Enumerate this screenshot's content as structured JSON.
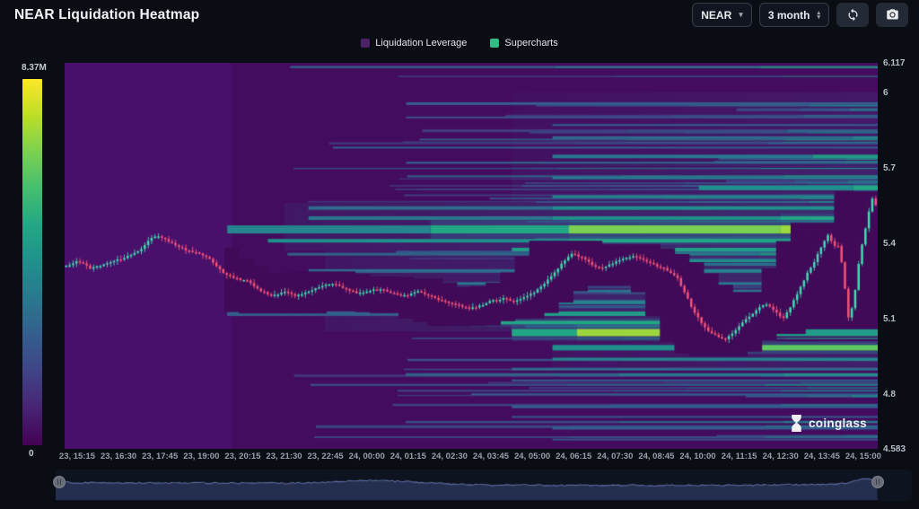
{
  "header": {
    "title": "NEAR Liquidation Heatmap",
    "symbol_select": {
      "value": "NEAR"
    },
    "period_select": {
      "value": "3 month"
    }
  },
  "legend": [
    {
      "label": "Liquidation Leverage",
      "color": "#4b2066"
    },
    {
      "label": "Supercharts",
      "color": "#2ebd85"
    }
  ],
  "colorbar": {
    "max_label": "8.37M",
    "min_label": "0",
    "colors": [
      "#fde725",
      "#bdde26",
      "#7ad151",
      "#44be70",
      "#22a784",
      "#20908c",
      "#29788e",
      "#345e8d",
      "#404387",
      "#482374",
      "#440154"
    ]
  },
  "watermark": {
    "text": "coinglass"
  },
  "chart_data": {
    "type": "heatmap",
    "title": "NEAR Liquidation Heatmap",
    "legend": [
      "Liquidation Leverage",
      "Supercharts"
    ],
    "colorbar": {
      "min": 0,
      "max": "8.37M"
    },
    "x_axis": {
      "labels": [
        "23, 15:15",
        "23, 16:30",
        "23, 17:45",
        "23, 19:00",
        "23, 20:15",
        "23, 21:30",
        "23, 22:45",
        "24, 00:00",
        "24, 01:15",
        "24, 02:30",
        "24, 03:45",
        "24, 05:00",
        "24, 06:15",
        "24, 07:30",
        "24, 08:45",
        "24, 10:00",
        "24, 11:15",
        "24, 12:30",
        "24, 13:45",
        "24, 15:00"
      ]
    },
    "y_axis": {
      "labels": [
        "6.117",
        "6",
        "5.7",
        "5.4",
        "5.1",
        "4.8",
        "4.583"
      ],
      "values": [
        6.117,
        6,
        5.7,
        5.4,
        5.1,
        4.8,
        4.583
      ],
      "min": 4.583,
      "max": 6.117
    },
    "price_path_keyframes": [
      [
        0.0,
        5.31
      ],
      [
        0.015,
        5.33
      ],
      [
        0.03,
        5.3
      ],
      [
        0.05,
        5.32
      ],
      [
        0.07,
        5.34
      ],
      [
        0.09,
        5.37
      ],
      [
        0.105,
        5.42
      ],
      [
        0.115,
        5.43
      ],
      [
        0.13,
        5.4
      ],
      [
        0.15,
        5.37
      ],
      [
        0.165,
        5.36
      ],
      [
        0.18,
        5.33
      ],
      [
        0.195,
        5.28
      ],
      [
        0.21,
        5.26
      ],
      [
        0.225,
        5.25
      ],
      [
        0.24,
        5.21
      ],
      [
        0.255,
        5.19
      ],
      [
        0.27,
        5.21
      ],
      [
        0.285,
        5.19
      ],
      [
        0.3,
        5.21
      ],
      [
        0.315,
        5.23
      ],
      [
        0.33,
        5.24
      ],
      [
        0.345,
        5.22
      ],
      [
        0.36,
        5.2
      ],
      [
        0.375,
        5.21
      ],
      [
        0.39,
        5.22
      ],
      [
        0.405,
        5.2
      ],
      [
        0.42,
        5.19
      ],
      [
        0.435,
        5.21
      ],
      [
        0.45,
        5.19
      ],
      [
        0.465,
        5.17
      ],
      [
        0.48,
        5.16
      ],
      [
        0.495,
        5.14
      ],
      [
        0.51,
        5.15
      ],
      [
        0.525,
        5.17
      ],
      [
        0.54,
        5.18
      ],
      [
        0.555,
        5.17
      ],
      [
        0.57,
        5.19
      ],
      [
        0.585,
        5.22
      ],
      [
        0.6,
        5.27
      ],
      [
        0.615,
        5.33
      ],
      [
        0.625,
        5.36
      ],
      [
        0.64,
        5.34
      ],
      [
        0.65,
        5.31
      ],
      [
        0.66,
        5.3
      ],
      [
        0.675,
        5.32
      ],
      [
        0.69,
        5.34
      ],
      [
        0.7,
        5.35
      ],
      [
        0.715,
        5.33
      ],
      [
        0.73,
        5.31
      ],
      [
        0.745,
        5.29
      ],
      [
        0.755,
        5.26
      ],
      [
        0.765,
        5.2
      ],
      [
        0.775,
        5.13
      ],
      [
        0.79,
        5.06
      ],
      [
        0.805,
        5.03
      ],
      [
        0.815,
        5.02
      ],
      [
        0.825,
        5.05
      ],
      [
        0.84,
        5.1
      ],
      [
        0.855,
        5.14
      ],
      [
        0.865,
        5.16
      ],
      [
        0.875,
        5.13
      ],
      [
        0.885,
        5.1
      ],
      [
        0.895,
        5.15
      ],
      [
        0.905,
        5.21
      ],
      [
        0.915,
        5.28
      ],
      [
        0.925,
        5.33
      ],
      [
        0.93,
        5.37
      ],
      [
        0.935,
        5.4
      ],
      [
        0.942,
        5.44
      ],
      [
        0.948,
        5.38
      ],
      [
        0.952,
        5.41
      ],
      [
        0.956,
        5.35
      ],
      [
        0.96,
        5.3
      ],
      [
        0.965,
        5.1
      ],
      [
        0.969,
        5.12
      ],
      [
        0.974,
        5.2
      ],
      [
        0.978,
        5.3
      ],
      [
        0.982,
        5.38
      ],
      [
        0.987,
        5.45
      ],
      [
        0.991,
        5.52
      ],
      [
        0.996,
        5.58
      ],
      [
        1.0,
        5.55
      ]
    ],
    "liquidation_bands": [
      {
        "p": 5.955,
        "h": 3,
        "s": [
          [
            0.42,
            1,
            0.3
          ]
        ]
      },
      {
        "p": 5.9,
        "h": 2,
        "s": [
          [
            0.42,
            1,
            0.25
          ]
        ]
      },
      {
        "p": 5.87,
        "h": 2,
        "s": [
          [
            0.6,
            1,
            0.3
          ]
        ]
      },
      {
        "p": 5.82,
        "h": 3,
        "s": [
          [
            0.6,
            0.97,
            0.35
          ],
          [
            0.97,
            1,
            0.45
          ]
        ]
      },
      {
        "p": 5.78,
        "h": 2,
        "s": [
          [
            0.33,
            1,
            0.3
          ]
        ]
      },
      {
        "p": 5.745,
        "h": 4,
        "s": [
          [
            0.6,
            0.92,
            0.4
          ],
          [
            0.92,
            1,
            0.55
          ]
        ]
      },
      {
        "p": 5.72,
        "h": 2,
        "s": [
          [
            0.42,
            1,
            0.35
          ]
        ]
      },
      {
        "p": 5.66,
        "h": 3,
        "s": [
          [
            0.6,
            1,
            0.4
          ]
        ]
      },
      {
        "p": 5.62,
        "h": 5,
        "s": [
          [
            0.78,
            0.97,
            0.5
          ],
          [
            0.97,
            1,
            0.6
          ]
        ]
      },
      {
        "p": 5.585,
        "h": 3,
        "s": [
          [
            0.6,
            1,
            0.45
          ]
        ]
      },
      {
        "p": 5.54,
        "h": 4,
        "s": [
          [
            0.3,
            0.6,
            0.35
          ],
          [
            0.6,
            1,
            0.5
          ]
        ]
      },
      {
        "p": 5.5,
        "h": 4,
        "s": [
          [
            0.3,
            0.6,
            0.4
          ],
          [
            0.6,
            0.88,
            0.5
          ],
          [
            0.88,
            1,
            0.6
          ]
        ]
      },
      {
        "p": 5.455,
        "h": 9,
        "s": [
          [
            0.2,
            0.45,
            0.45
          ],
          [
            0.45,
            0.62,
            0.6
          ],
          [
            0.62,
            0.88,
            0.8
          ],
          [
            0.88,
            0.945,
            0.85
          ],
          [
            0.945,
            0.978,
            1.0
          ],
          [
            0.978,
            1,
            0.8
          ]
        ]
      },
      {
        "p": 5.41,
        "h": 4,
        "s": [
          [
            0.25,
            0.62,
            0.5
          ],
          [
            0.62,
            1,
            0.6
          ]
        ]
      },
      {
        "p": 5.375,
        "h": 4,
        "s": [
          [
            0.55,
            1,
            0.55
          ]
        ]
      },
      {
        "p": 5.33,
        "h": 3,
        "s": [
          [
            0.58,
            1,
            0.5
          ]
        ]
      },
      {
        "p": 5.29,
        "h": 4,
        "s": [
          [
            0.3,
            0.58,
            0.35
          ],
          [
            0.58,
            1,
            0.45
          ]
        ]
      },
      {
        "p": 5.24,
        "h": 3,
        "s": [
          [
            0.33,
            1,
            0.4
          ]
        ]
      },
      {
        "p": 5.21,
        "h": 3,
        "s": [
          [
            0.42,
            1,
            0.38
          ]
        ]
      },
      {
        "p": 5.165,
        "h": 4,
        "s": [
          [
            0.2,
            0.47,
            0.3
          ],
          [
            0.47,
            1,
            0.45
          ]
        ]
      },
      {
        "p": 5.12,
        "h": 5,
        "s": [
          [
            0.2,
            0.47,
            0.3
          ],
          [
            0.47,
            0.8,
            0.55
          ],
          [
            0.8,
            1,
            0.5
          ]
        ]
      },
      {
        "p": 5.085,
        "h": 4,
        "s": [
          [
            0.5,
            0.82,
            0.6
          ],
          [
            0.82,
            1,
            0.5
          ]
        ]
      },
      {
        "p": 5.045,
        "h": 8,
        "s": [
          [
            0.55,
            0.63,
            0.6
          ],
          [
            0.63,
            0.875,
            0.85
          ],
          [
            0.875,
            1,
            0.55
          ]
        ]
      },
      {
        "p": 4.985,
        "h": 6,
        "s": [
          [
            0.6,
            0.82,
            0.5
          ],
          [
            0.82,
            1,
            0.75
          ]
        ]
      },
      {
        "p": 4.94,
        "h": 3,
        "s": [
          [
            0.6,
            1,
            0.45
          ]
        ]
      },
      {
        "p": 4.9,
        "h": 3,
        "s": [
          [
            0.55,
            1,
            0.35
          ]
        ]
      },
      {
        "p": 4.855,
        "h": 2,
        "s": [
          [
            0.55,
            1,
            0.3
          ]
        ]
      },
      {
        "p": 4.8,
        "h": 2,
        "s": [
          [
            0.5,
            1,
            0.28
          ]
        ]
      },
      {
        "p": 4.75,
        "h": 3,
        "s": [
          [
            0.55,
            1,
            0.3
          ]
        ]
      },
      {
        "p": 4.71,
        "h": 2,
        "s": [
          [
            0.55,
            1,
            0.28
          ]
        ]
      },
      {
        "p": 4.665,
        "h": 3,
        "s": [
          [
            0.6,
            1,
            0.3
          ]
        ]
      },
      {
        "p": 4.62,
        "h": 2,
        "s": [
          [
            0.6,
            1,
            0.25
          ]
        ]
      }
    ],
    "washes": [
      {
        "p0": 5.56,
        "p1": 5.37,
        "f0": 0.27,
        "int": 0.3,
        "alpha": 0.4
      },
      {
        "p0": 5.37,
        "p1": 5.05,
        "f0": 0.32,
        "int": 0.3,
        "alpha": 0.38
      },
      {
        "p0": 5.72,
        "p1": 5.56,
        "f0": 0.55,
        "int": 0.26,
        "alpha": 0.32
      },
      {
        "p0": 6.0,
        "p1": 5.72,
        "f0": 0.55,
        "int": 0.2,
        "alpha": 0.25
      },
      {
        "p0": 5.01,
        "p1": 4.9,
        "f0": 0.6,
        "int": 0.24,
        "alpha": 0.3
      }
    ],
    "navigator_path": [
      [
        0.0,
        0.38
      ],
      [
        0.03,
        0.42
      ],
      [
        0.06,
        0.41
      ],
      [
        0.09,
        0.43
      ],
      [
        0.12,
        0.42
      ],
      [
        0.15,
        0.43
      ],
      [
        0.18,
        0.42
      ],
      [
        0.21,
        0.43
      ],
      [
        0.24,
        0.42
      ],
      [
        0.27,
        0.43
      ],
      [
        0.3,
        0.41
      ],
      [
        0.33,
        0.36
      ],
      [
        0.35,
        0.33
      ],
      [
        0.37,
        0.32
      ],
      [
        0.39,
        0.34
      ],
      [
        0.41,
        0.36
      ],
      [
        0.43,
        0.4
      ],
      [
        0.46,
        0.46
      ],
      [
        0.49,
        0.5
      ],
      [
        0.52,
        0.52
      ],
      [
        0.55,
        0.51
      ],
      [
        0.58,
        0.53
      ],
      [
        0.61,
        0.52
      ],
      [
        0.64,
        0.53
      ],
      [
        0.67,
        0.51
      ],
      [
        0.7,
        0.53
      ],
      [
        0.73,
        0.52
      ],
      [
        0.76,
        0.53
      ],
      [
        0.79,
        0.51
      ],
      [
        0.82,
        0.52
      ],
      [
        0.85,
        0.5
      ],
      [
        0.87,
        0.51
      ],
      [
        0.89,
        0.49
      ],
      [
        0.91,
        0.46
      ],
      [
        0.925,
        0.42
      ],
      [
        0.94,
        0.28
      ],
      [
        0.95,
        0.22
      ],
      [
        0.955,
        0.3
      ],
      [
        0.96,
        0.36
      ]
    ],
    "navigator_fill_end": 0.96,
    "candle_up_color": "#3fe3b4",
    "candle_down_color": "#fb5578"
  }
}
